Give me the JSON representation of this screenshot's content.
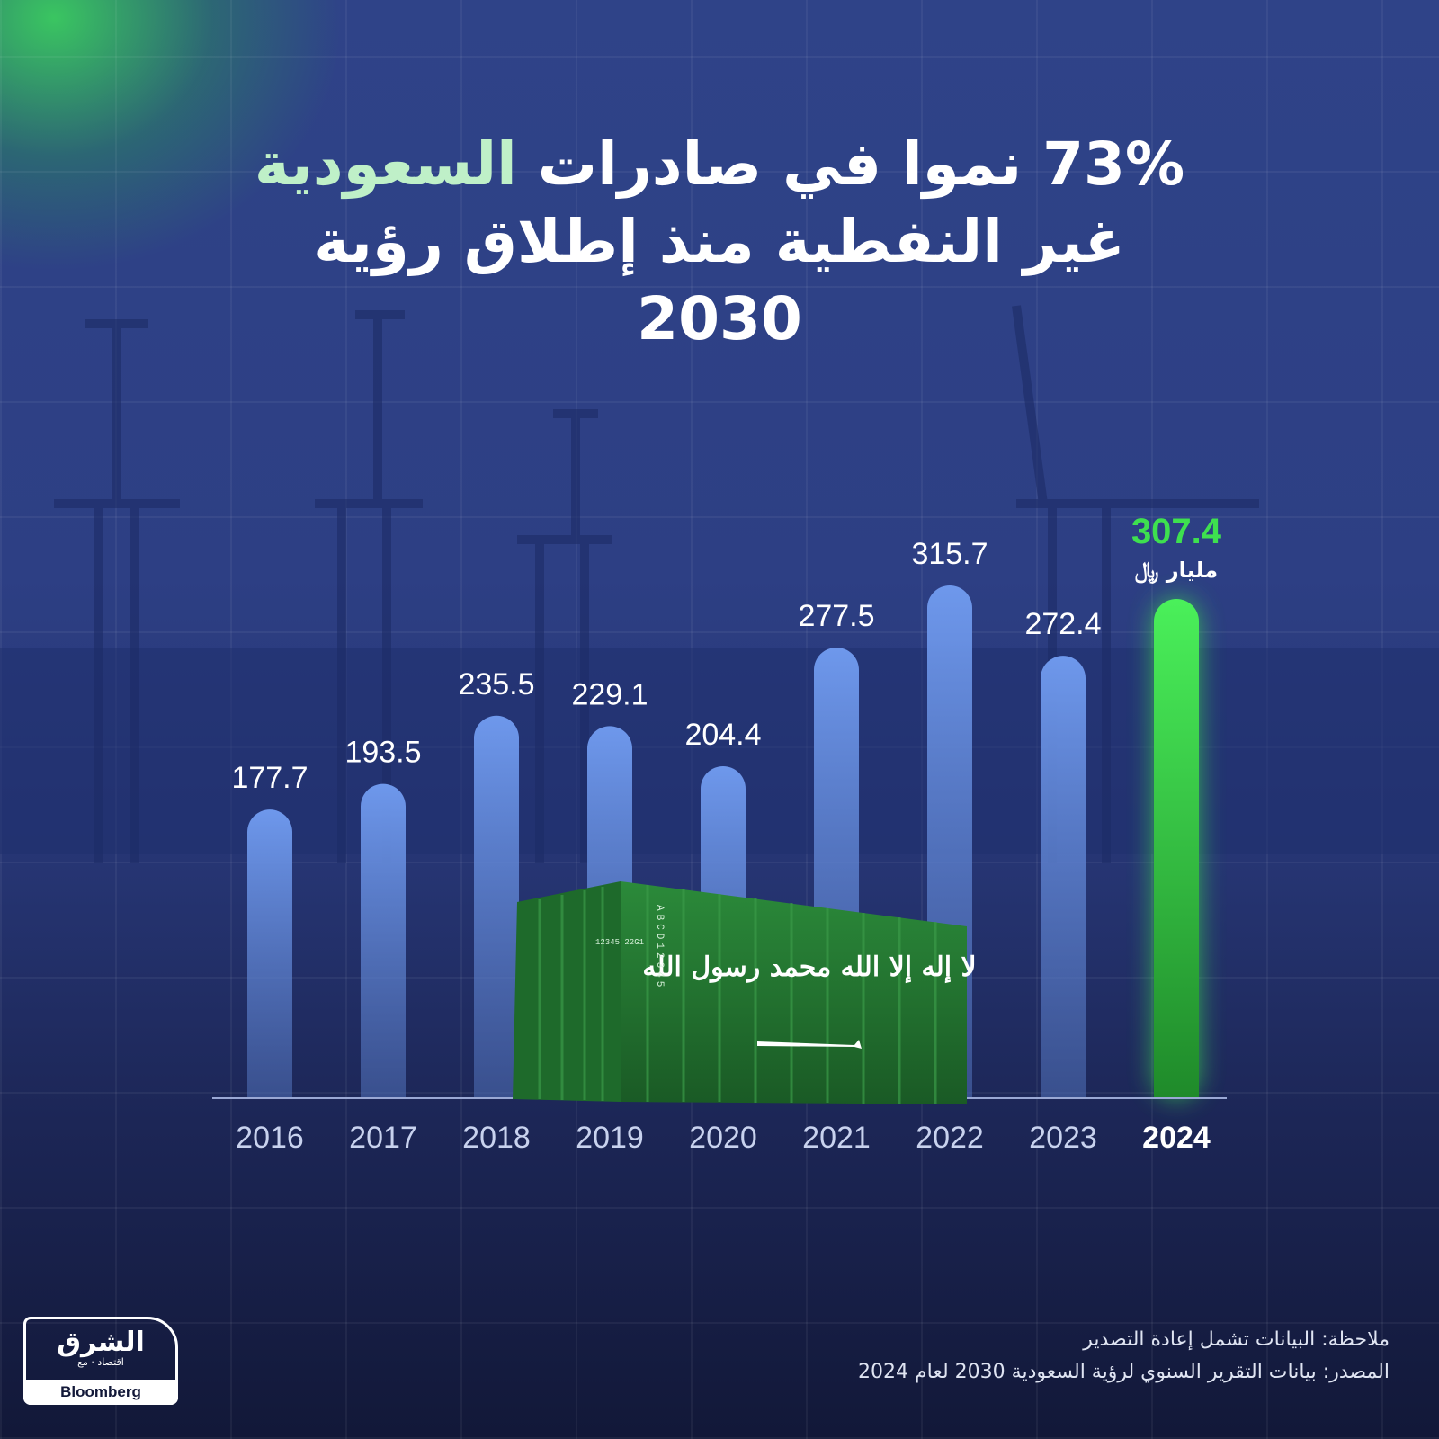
{
  "title": {
    "part_1": "73% نموا في صادرات ",
    "part_highlight": "السعودية",
    "part_2": "غير النفطية منذ إطلاق رؤية",
    "part_3": "2030"
  },
  "chart_data": {
    "type": "bar",
    "categories": [
      "2016",
      "2017",
      "2018",
      "2019",
      "2020",
      "2021",
      "2022",
      "2023",
      "2024"
    ],
    "values": [
      177.7,
      193.5,
      235.5,
      229.1,
      204.4,
      277.5,
      315.7,
      272.4,
      307.4
    ],
    "value_labels": [
      "177.7",
      "193.5",
      "235.5",
      "229.1",
      "204.4",
      "277.5",
      "315.7",
      "272.4",
      "307.4"
    ],
    "highlight_index": 8,
    "unit": "مليار ﷼",
    "colors": {
      "bar": "#5a86dc",
      "highlight": "#3ee04f"
    }
  },
  "footer": {
    "note": "ملاحظة: البيانات تشمل إعادة التصدير",
    "source": "المصدر: بيانات التقرير السنوي لرؤية السعودية 2030 لعام 2024"
  },
  "logo": {
    "arabic": "الشرق",
    "arabic_sub": "اقتصاد",
    "with": "مع",
    "english": "Bloomberg"
  },
  "container": {
    "flag_text": "لا إله إلا الله محمد رسول الله",
    "side_code": "ABCD12345",
    "door_code": "12345 22G1"
  }
}
